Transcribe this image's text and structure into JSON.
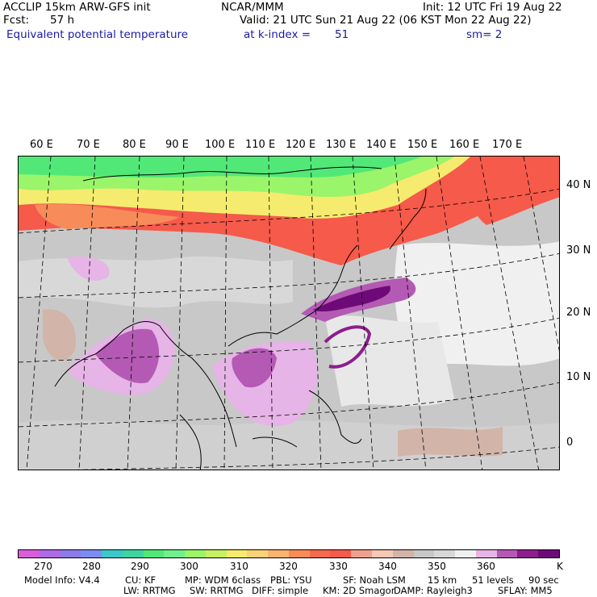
{
  "header": {
    "left1": "ACCLIP 15km ARW-GFS init",
    "left2_label": "Fcst:",
    "left2_value": "57 h",
    "field": "Equivalent potential temperature",
    "center1": "NCAR/MMM",
    "init": "Init: 12 UTC Fri 19 Aug 22",
    "valid": "Valid: 21 UTC Sun 21 Aug 22 (06 KST Mon 22 Aug 22)",
    "level_label": "at k-index =",
    "level_value": "51",
    "smooth": "sm= 2"
  },
  "map": {
    "lon_labels": [
      "60 E",
      "70 E",
      "80 E",
      "90 E",
      "100 E",
      "110 E",
      "120 E",
      "130 E",
      "140 E",
      "150 E",
      "160 E",
      "170 E"
    ],
    "lat_labels": [
      "40 N",
      "30 N",
      "20 N",
      "10 N",
      "0"
    ]
  },
  "colorbar": {
    "colors": [
      "#d95fd9",
      "#b069e6",
      "#8c7ae8",
      "#7d8cf2",
      "#3cc8c8",
      "#3ed4a0",
      "#52e878",
      "#6ff08c",
      "#9af56a",
      "#c8f064",
      "#f5eb6e",
      "#fad278",
      "#f8b470",
      "#f78c5a",
      "#f56a4e",
      "#f55a4a",
      "#f0a08c",
      "#f4c8b4",
      "#d2b4a8",
      "#c8c8c8",
      "#d8d8d8",
      "#f0f0f0",
      "#e6b4e6",
      "#b45ab4",
      "#8c1e8c",
      "#6e0a78"
    ],
    "labels": [
      "270",
      "280",
      "290",
      "300",
      "310",
      "320",
      "330",
      "340",
      "350",
      "360"
    ],
    "unit": "K"
  },
  "model_info": {
    "line1": [
      "Model Info: V4.4",
      "CU: KF",
      "MP: WDM 6class",
      "PBL: YSU",
      "SF: Noah LSM",
      "15 km",
      "51 levels",
      "90 sec"
    ],
    "line2": [
      "LW: RRTMG",
      "SW: RRTMG",
      "DIFF: simple",
      "KM: 2D Smagor",
      "DAMP: Rayleigh3",
      "SFLAY: MM5"
    ]
  }
}
